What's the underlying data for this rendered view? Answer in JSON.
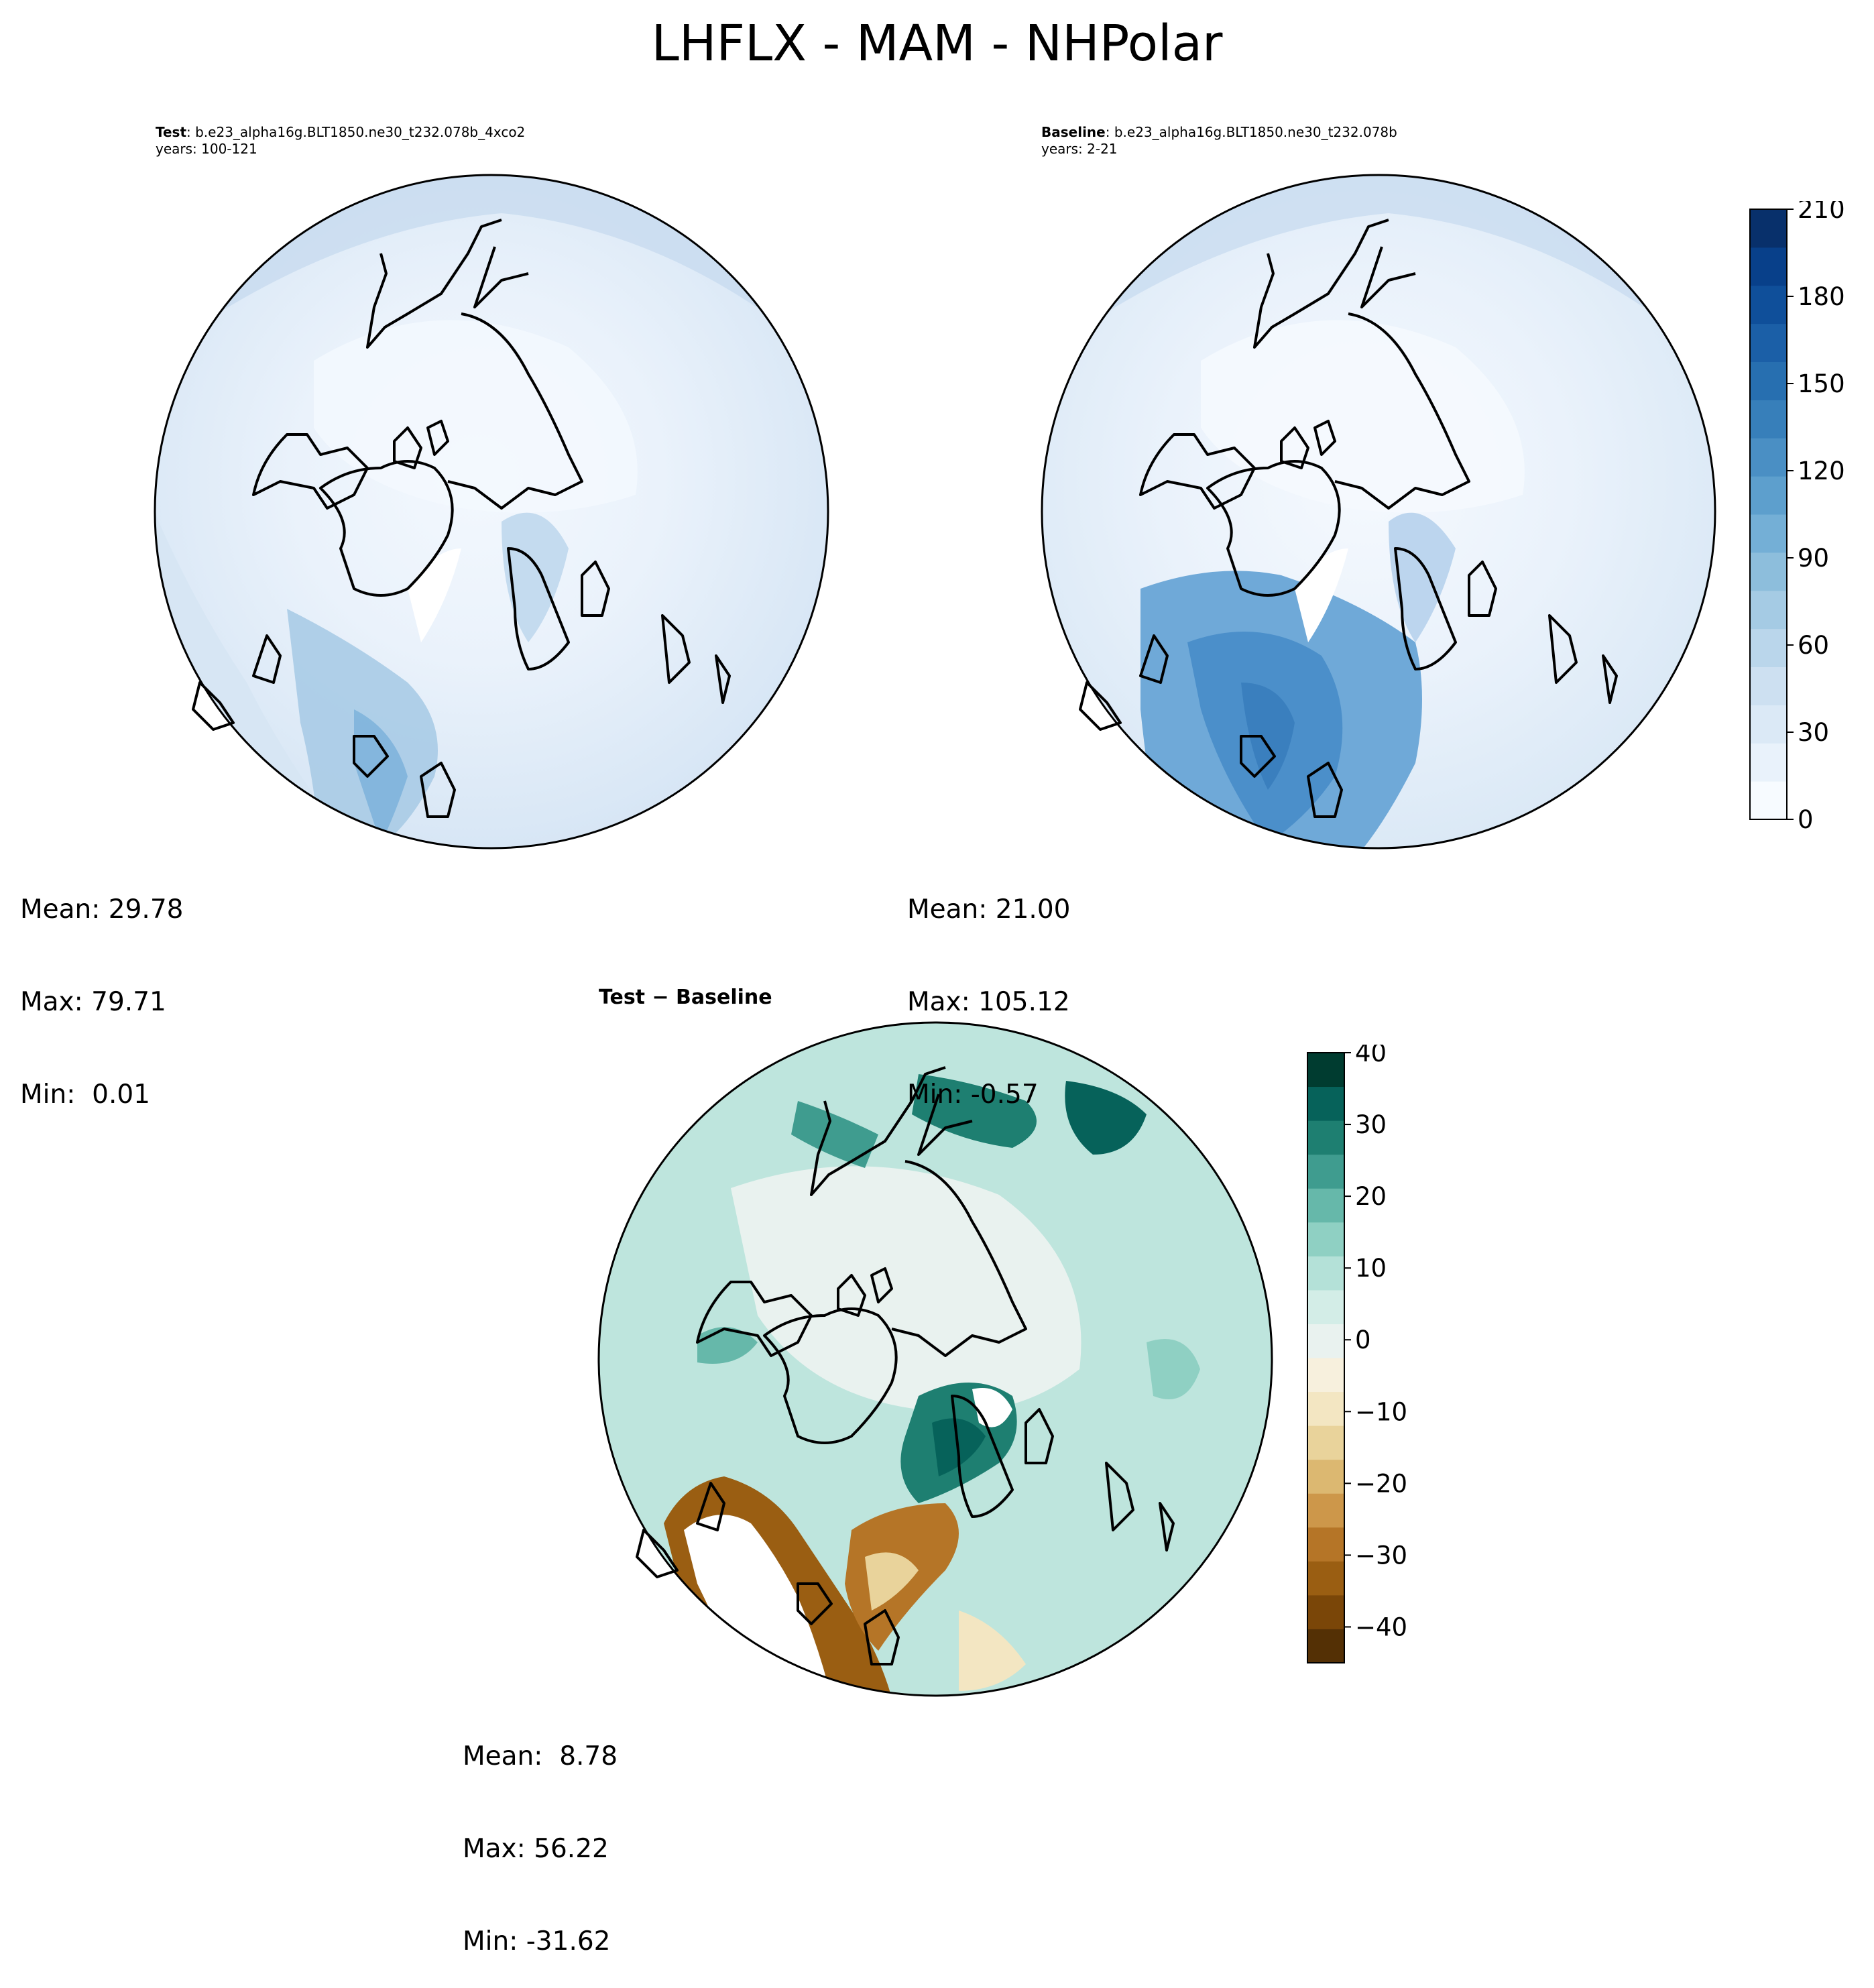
{
  "title": "LHFLX - MAM - NHPolar",
  "panels": {
    "test": {
      "label_bold": "Test",
      "label_rest": ": b.e23_alpha16g.BLT1850.ne30_t232.078b_4xco2",
      "years": "years: 100-121",
      "stats": {
        "mean": "Mean: 29.78",
        "max": "Max: 79.71",
        "min": "Min:  0.01"
      }
    },
    "baseline": {
      "label_bold": "Baseline",
      "label_rest": ": b.e23_alpha16g.BLT1850.ne30_t232.078b",
      "years": "years: 2-21",
      "stats": {
        "mean": "Mean: 21.00",
        "max": "Max: 105.12",
        "min": "Min: -0.57"
      }
    },
    "difference": {
      "title": "Test − Baseline",
      "stats": {
        "mean": "Mean:  8.78",
        "max": "Max: 56.22",
        "min": "Min: -31.62"
      }
    }
  },
  "colorbars": {
    "main": {
      "ticks": [
        "0",
        "30",
        "60",
        "90",
        "120",
        "150",
        "180",
        "210"
      ],
      "range": [
        0,
        210
      ],
      "colors": [
        "#f7fbff",
        "#e9f2fb",
        "#dbe9f6",
        "#cde0f1",
        "#bad6eb",
        "#a5cbe4",
        "#8dbedc",
        "#74afd6",
        "#5d9fcd",
        "#4a8fc4",
        "#377fba",
        "#276fb0",
        "#1b5fa7",
        "#0f4f9a",
        "#08408a",
        "#08306b"
      ]
    },
    "diff": {
      "ticks": [
        "40",
        "30",
        "20",
        "10",
        "0",
        "−10",
        "−20",
        "−30",
        "−40"
      ],
      "range": [
        -45,
        40
      ],
      "colors": [
        "#543005",
        "#7a4608",
        "#9a5e12",
        "#b57527",
        "#cd974a",
        "#dcb871",
        "#e9d39b",
        "#f3e6c2",
        "#f7f0dd",
        "#e9f2ef",
        "#d3ede7",
        "#b4e1d8",
        "#8fd0c3",
        "#66b8aa",
        "#3f9c8f",
        "#1e7f71",
        "#06625a",
        "#003c30"
      ]
    }
  }
}
